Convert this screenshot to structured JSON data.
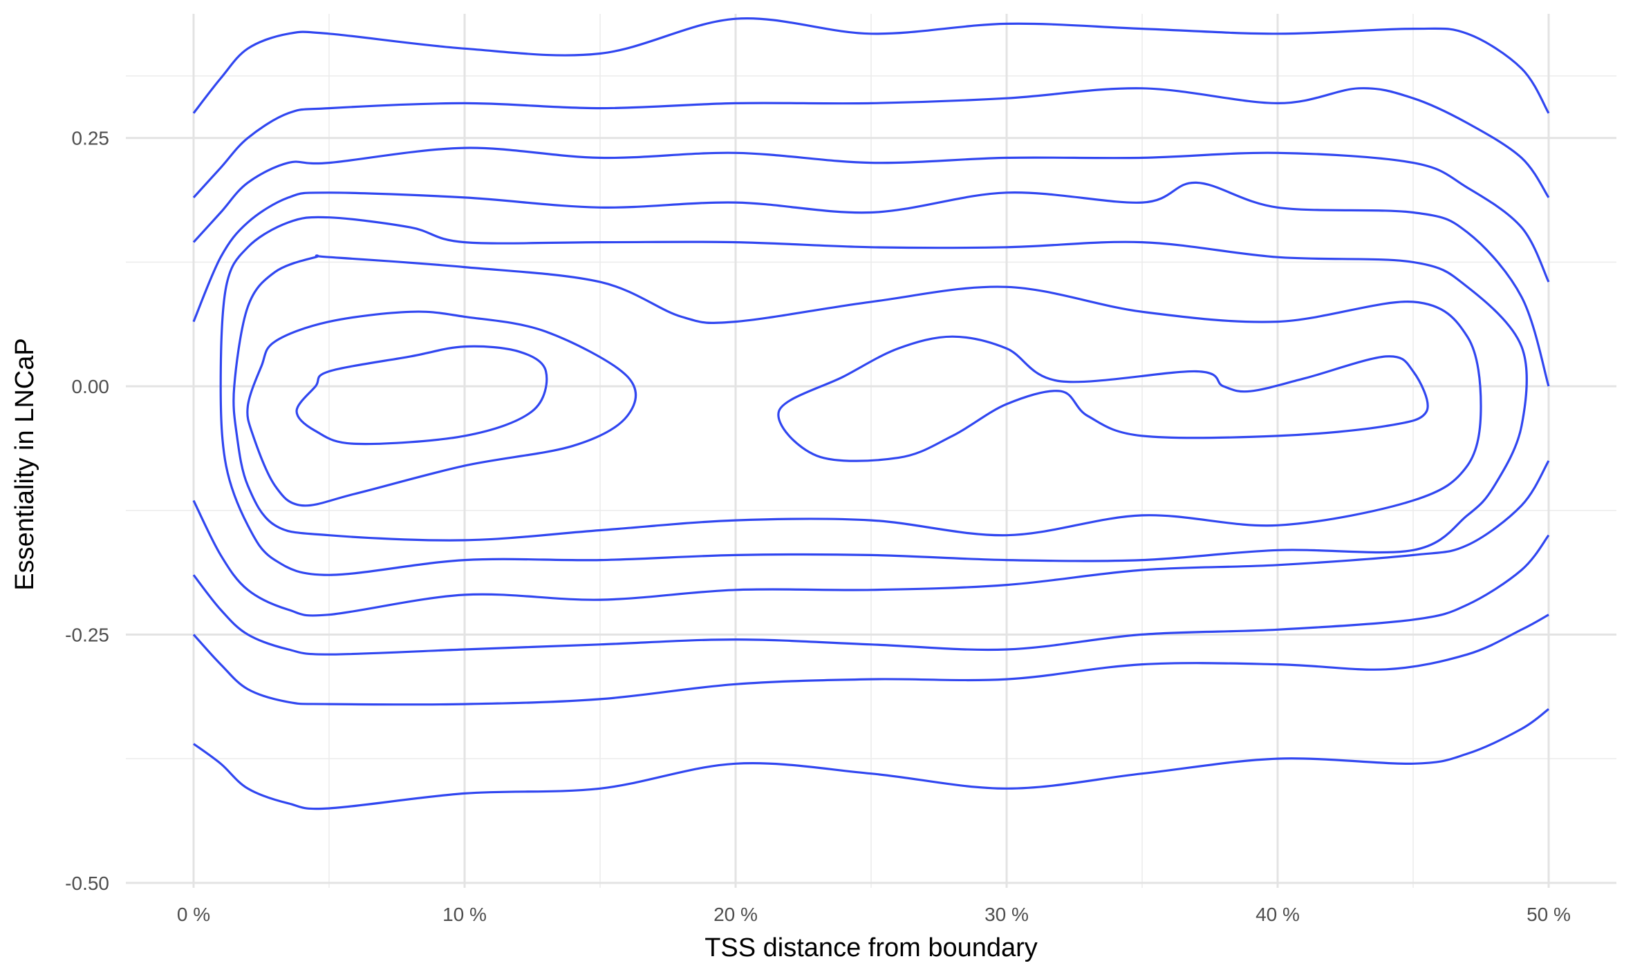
{
  "chart_data": {
    "type": "contour",
    "title": "",
    "xlabel": "TSS distance from boundary",
    "ylabel": "Essentiality in LNCaP",
    "xlim": [
      -0.025,
      0.525
    ],
    "ylim": [
      -0.505,
      0.375
    ],
    "x_ticks": [
      0,
      0.1,
      0.2,
      0.3,
      0.4,
      0.5
    ],
    "x_tick_labels": [
      "0 %",
      "10 %",
      "20 %",
      "30 %",
      "40 %",
      "50 %"
    ],
    "y_ticks": [
      -0.5,
      -0.25,
      0,
      0.25
    ],
    "y_tick_labels": [
      "-0.50",
      "-0.25",
      "0.00",
      "0.25"
    ],
    "x_minor": [
      0.05,
      0.15,
      0.25,
      0.35,
      0.45
    ],
    "y_minor": [
      -0.375,
      -0.125,
      0.125,
      0.3125
    ],
    "grid": true,
    "line_color": "#3046f0",
    "contours": [
      {
        "closed": false,
        "points": [
          [
            0,
            0.275
          ],
          [
            0.01,
            0.31
          ],
          [
            0.02,
            0.34
          ],
          [
            0.035,
            0.355
          ],
          [
            0.05,
            0.355
          ],
          [
            0.1,
            0.34
          ],
          [
            0.15,
            0.335
          ],
          [
            0.2,
            0.37
          ],
          [
            0.25,
            0.355
          ],
          [
            0.3,
            0.365
          ],
          [
            0.35,
            0.36
          ],
          [
            0.4,
            0.355
          ],
          [
            0.45,
            0.36
          ],
          [
            0.47,
            0.355
          ],
          [
            0.49,
            0.32
          ],
          [
            0.5,
            0.275
          ]
        ]
      },
      {
        "closed": false,
        "points": [
          [
            0,
            0.19
          ],
          [
            0.01,
            0.22
          ],
          [
            0.02,
            0.25
          ],
          [
            0.035,
            0.275
          ],
          [
            0.05,
            0.28
          ],
          [
            0.1,
            0.285
          ],
          [
            0.15,
            0.28
          ],
          [
            0.2,
            0.285
          ],
          [
            0.25,
            0.285
          ],
          [
            0.3,
            0.29
          ],
          [
            0.35,
            0.3
          ],
          [
            0.4,
            0.285
          ],
          [
            0.43,
            0.3
          ],
          [
            0.45,
            0.29
          ],
          [
            0.47,
            0.265
          ],
          [
            0.49,
            0.23
          ],
          [
            0.5,
            0.19
          ]
        ]
      },
      {
        "closed": false,
        "points": [
          [
            0,
            0.145
          ],
          [
            0.01,
            0.175
          ],
          [
            0.02,
            0.205
          ],
          [
            0.035,
            0.225
          ],
          [
            0.05,
            0.225
          ],
          [
            0.1,
            0.24
          ],
          [
            0.15,
            0.23
          ],
          [
            0.2,
            0.235
          ],
          [
            0.25,
            0.225
          ],
          [
            0.3,
            0.23
          ],
          [
            0.35,
            0.23
          ],
          [
            0.4,
            0.235
          ],
          [
            0.45,
            0.225
          ],
          [
            0.47,
            0.2
          ],
          [
            0.49,
            0.16
          ],
          [
            0.5,
            0.105
          ]
        ]
      },
      {
        "closed": false,
        "points": [
          [
            0,
            0.065
          ],
          [
            0.01,
            0.13
          ],
          [
            0.02,
            0.165
          ],
          [
            0.035,
            0.19
          ],
          [
            0.05,
            0.195
          ],
          [
            0.1,
            0.19
          ],
          [
            0.15,
            0.18
          ],
          [
            0.2,
            0.185
          ],
          [
            0.25,
            0.175
          ],
          [
            0.3,
            0.195
          ],
          [
            0.35,
            0.185
          ],
          [
            0.37,
            0.205
          ],
          [
            0.4,
            0.18
          ],
          [
            0.45,
            0.175
          ],
          [
            0.47,
            0.155
          ],
          [
            0.49,
            0.09
          ],
          [
            0.5,
            0.0
          ]
        ]
      },
      {
        "closed": true,
        "points": [
          [
            0.01,
            0.0
          ],
          [
            0.012,
            0.1
          ],
          [
            0.02,
            0.14
          ],
          [
            0.035,
            0.165
          ],
          [
            0.05,
            0.17
          ],
          [
            0.08,
            0.16
          ],
          [
            0.1,
            0.145
          ],
          [
            0.15,
            0.145
          ],
          [
            0.2,
            0.145
          ],
          [
            0.25,
            0.14
          ],
          [
            0.3,
            0.14
          ],
          [
            0.35,
            0.145
          ],
          [
            0.4,
            0.13
          ],
          [
            0.45,
            0.125
          ],
          [
            0.47,
            0.1
          ],
          [
            0.49,
            0.04
          ],
          [
            0.49,
            -0.04
          ],
          [
            0.48,
            -0.1
          ],
          [
            0.47,
            -0.13
          ],
          [
            0.45,
            -0.165
          ],
          [
            0.4,
            -0.165
          ],
          [
            0.35,
            -0.175
          ],
          [
            0.3,
            -0.175
          ],
          [
            0.25,
            -0.17
          ],
          [
            0.2,
            -0.17
          ],
          [
            0.15,
            -0.175
          ],
          [
            0.1,
            -0.175
          ],
          [
            0.05,
            -0.19
          ],
          [
            0.03,
            -0.175
          ],
          [
            0.02,
            -0.14
          ],
          [
            0.012,
            -0.08
          ]
        ]
      },
      {
        "closed": true,
        "points": [
          [
            0.015,
            0.0
          ],
          [
            0.02,
            0.08
          ],
          [
            0.03,
            0.115
          ],
          [
            0.045,
            0.13
          ],
          [
            0.05,
            0.13
          ],
          [
            0.1,
            0.12
          ],
          [
            0.15,
            0.105
          ],
          [
            0.18,
            0.07
          ],
          [
            0.2,
            0.065
          ],
          [
            0.25,
            0.085
          ],
          [
            0.3,
            0.1
          ],
          [
            0.35,
            0.075
          ],
          [
            0.4,
            0.065
          ],
          [
            0.45,
            0.085
          ],
          [
            0.47,
            0.05
          ],
          [
            0.475,
            -0.02
          ],
          [
            0.47,
            -0.08
          ],
          [
            0.45,
            -0.115
          ],
          [
            0.4,
            -0.14
          ],
          [
            0.35,
            -0.13
          ],
          [
            0.3,
            -0.15
          ],
          [
            0.25,
            -0.135
          ],
          [
            0.2,
            -0.135
          ],
          [
            0.15,
            -0.145
          ],
          [
            0.1,
            -0.155
          ],
          [
            0.05,
            -0.15
          ],
          [
            0.03,
            -0.14
          ],
          [
            0.02,
            -0.1
          ],
          [
            0.016,
            -0.05
          ]
        ]
      },
      {
        "closed": true,
        "points": [
          [
            0.02,
            -0.02
          ],
          [
            0.025,
            0.02
          ],
          [
            0.03,
            0.045
          ],
          [
            0.05,
            0.065
          ],
          [
            0.08,
            0.075
          ],
          [
            0.1,
            0.07
          ],
          [
            0.13,
            0.055
          ],
          [
            0.16,
            0.01
          ],
          [
            0.16,
            -0.03
          ],
          [
            0.14,
            -0.06
          ],
          [
            0.1,
            -0.08
          ],
          [
            0.06,
            -0.108
          ],
          [
            0.04,
            -0.12
          ],
          [
            0.03,
            -0.1
          ],
          [
            0.022,
            -0.05
          ]
        ]
      },
      {
        "closed": true,
        "points": [
          [
            0.038,
            -0.025
          ],
          [
            0.045,
            0.0
          ],
          [
            0.05,
            0.015
          ],
          [
            0.08,
            0.03
          ],
          [
            0.1,
            0.04
          ],
          [
            0.12,
            0.035
          ],
          [
            0.13,
            0.015
          ],
          [
            0.125,
            -0.025
          ],
          [
            0.1,
            -0.05
          ],
          [
            0.06,
            -0.058
          ],
          [
            0.045,
            -0.045
          ]
        ]
      },
      {
        "closed": true,
        "points": [
          [
            0.216,
            -0.025
          ],
          [
            0.24,
            0.01
          ],
          [
            0.26,
            0.038
          ],
          [
            0.28,
            0.05
          ],
          [
            0.3,
            0.038
          ],
          [
            0.32,
            0.005
          ],
          [
            0.37,
            0.015
          ],
          [
            0.38,
            0.0
          ],
          [
            0.39,
            -0.005
          ],
          [
            0.41,
            0.008
          ],
          [
            0.44,
            0.03
          ],
          [
            0.45,
            0.015
          ],
          [
            0.455,
            -0.025
          ],
          [
            0.44,
            -0.04
          ],
          [
            0.4,
            -0.05
          ],
          [
            0.35,
            -0.05
          ],
          [
            0.33,
            -0.03
          ],
          [
            0.32,
            -0.005
          ],
          [
            0.3,
            -0.018
          ],
          [
            0.28,
            -0.05
          ],
          [
            0.26,
            -0.072
          ],
          [
            0.23,
            -0.07
          ]
        ]
      },
      {
        "closed": false,
        "points": [
          [
            0,
            -0.115
          ],
          [
            0.01,
            -0.17
          ],
          [
            0.02,
            -0.205
          ],
          [
            0.035,
            -0.225
          ],
          [
            0.05,
            -0.23
          ],
          [
            0.1,
            -0.21
          ],
          [
            0.15,
            -0.215
          ],
          [
            0.2,
            -0.205
          ],
          [
            0.25,
            -0.205
          ],
          [
            0.3,
            -0.2
          ],
          [
            0.35,
            -0.185
          ],
          [
            0.4,
            -0.18
          ],
          [
            0.45,
            -0.17
          ],
          [
            0.47,
            -0.16
          ],
          [
            0.49,
            -0.12
          ],
          [
            0.5,
            -0.075
          ]
        ]
      },
      {
        "closed": false,
        "points": [
          [
            0,
            -0.19
          ],
          [
            0.01,
            -0.225
          ],
          [
            0.02,
            -0.25
          ],
          [
            0.035,
            -0.265
          ],
          [
            0.05,
            -0.27
          ],
          [
            0.1,
            -0.265
          ],
          [
            0.15,
            -0.26
          ],
          [
            0.2,
            -0.255
          ],
          [
            0.25,
            -0.26
          ],
          [
            0.3,
            -0.265
          ],
          [
            0.35,
            -0.25
          ],
          [
            0.4,
            -0.245
          ],
          [
            0.45,
            -0.235
          ],
          [
            0.47,
            -0.22
          ],
          [
            0.49,
            -0.185
          ],
          [
            0.5,
            -0.15
          ]
        ]
      },
      {
        "closed": false,
        "points": [
          [
            0,
            -0.25
          ],
          [
            0.01,
            -0.28
          ],
          [
            0.02,
            -0.305
          ],
          [
            0.035,
            -0.318
          ],
          [
            0.05,
            -0.32
          ],
          [
            0.1,
            -0.32
          ],
          [
            0.15,
            -0.315
          ],
          [
            0.2,
            -0.3
          ],
          [
            0.25,
            -0.295
          ],
          [
            0.3,
            -0.295
          ],
          [
            0.35,
            -0.28
          ],
          [
            0.4,
            -0.28
          ],
          [
            0.44,
            -0.285
          ],
          [
            0.47,
            -0.27
          ],
          [
            0.49,
            -0.245
          ],
          [
            0.5,
            -0.23
          ]
        ]
      },
      {
        "closed": false,
        "points": [
          [
            0,
            -0.36
          ],
          [
            0.01,
            -0.38
          ],
          [
            0.02,
            -0.405
          ],
          [
            0.035,
            -0.42
          ],
          [
            0.05,
            -0.425
          ],
          [
            0.1,
            -0.41
          ],
          [
            0.15,
            -0.405
          ],
          [
            0.2,
            -0.38
          ],
          [
            0.25,
            -0.39
          ],
          [
            0.3,
            -0.405
          ],
          [
            0.35,
            -0.39
          ],
          [
            0.4,
            -0.375
          ],
          [
            0.45,
            -0.38
          ],
          [
            0.47,
            -0.37
          ],
          [
            0.49,
            -0.345
          ],
          [
            0.5,
            -0.325
          ]
        ]
      }
    ]
  }
}
